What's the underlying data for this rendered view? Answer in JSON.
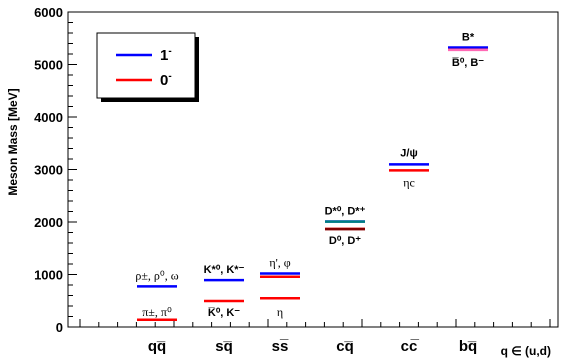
{
  "chart_data": {
    "type": "scatter",
    "title": "",
    "ylabel": "Meson Mass [MeV]",
    "xlabel": "q ∈ (u,d)",
    "ylim": [
      0,
      6000
    ],
    "yticks": [
      0,
      1000,
      2000,
      3000,
      4000,
      5000,
      6000
    ],
    "categories": [
      "qq̅",
      "sq̅",
      "ss̅",
      "cq̅",
      "cc̅",
      "bq̅"
    ],
    "legend": {
      "placement": "top-left",
      "entries": [
        {
          "label": "1",
          "sup": "-",
          "color": "#0000ff"
        },
        {
          "label": "0",
          "sup": "-",
          "color": "#ff0000"
        }
      ]
    },
    "series": [
      {
        "name": "1",
        "color": "#0000ff",
        "values": [
          775,
          892,
          1019,
          2010,
          3097,
          5325
        ]
      },
      {
        "name": "0",
        "color": "#ff0000",
        "values": [
          138,
          496,
          548,
          1868,
          2984,
          5280
        ]
      }
    ],
    "extra_levels": [
      {
        "category_index": 2,
        "value": 958,
        "color": "#ff0000"
      },
      {
        "category_index": 3,
        "value": 2007,
        "color": "#008080"
      },
      {
        "category_index": 3,
        "value": 1865,
        "color": "#800000"
      },
      {
        "category_index": 5,
        "value": 5279,
        "color": "#ff69b4"
      }
    ],
    "level_labels": [
      {
        "id": "rho",
        "text": "ρ±, ρ⁰, ω",
        "category_index": 0,
        "value": 775
      },
      {
        "id": "pi",
        "text": "π±, π⁰",
        "category_index": 0,
        "value": 138
      },
      {
        "id": "kstar",
        "text": "K*⁰, K*⁻",
        "category_index": 1,
        "value": 892
      },
      {
        "id": "k",
        "text": "K̅⁰, K⁻",
        "category_index": 1,
        "value": 496
      },
      {
        "id": "etaprime",
        "text": "η', φ",
        "category_index": 2,
        "value": 1019
      },
      {
        "id": "eta",
        "text": "η",
        "category_index": 2,
        "value": 548
      },
      {
        "id": "dstar",
        "text": "D*⁰, D*⁺",
        "category_index": 3,
        "value": 2010
      },
      {
        "id": "d",
        "text": "D⁰, D⁺",
        "category_index": 3,
        "value": 1868
      },
      {
        "id": "jpsi",
        "text": "J/ψ",
        "category_index": 4,
        "value": 3097
      },
      {
        "id": "etac",
        "text": "ηc",
        "category_index": 4,
        "value": 2984
      },
      {
        "id": "bstar",
        "text": "B*",
        "category_index": 5,
        "value": 5325
      },
      {
        "id": "b",
        "text": "B̅⁰, B⁻",
        "category_index": 5,
        "value": 5280
      }
    ]
  }
}
